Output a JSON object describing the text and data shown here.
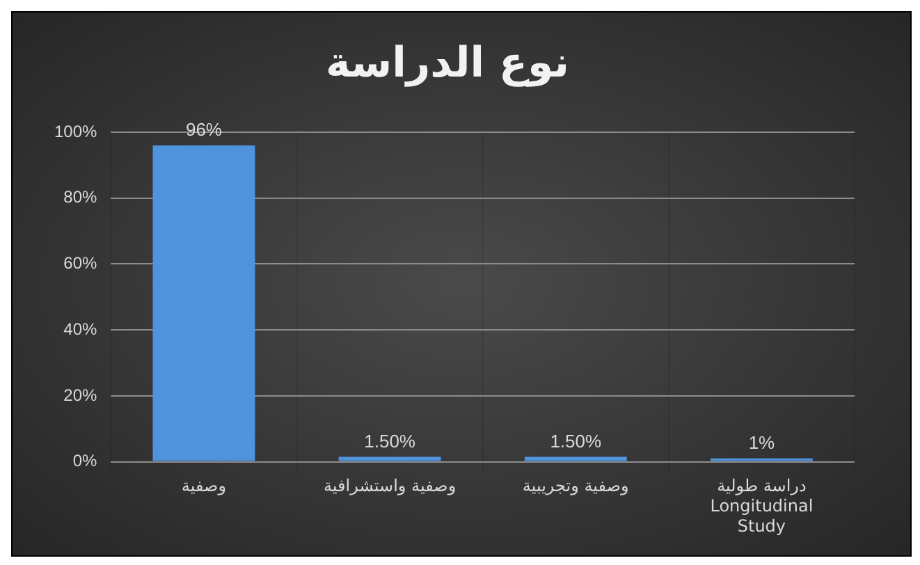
{
  "chart_data": {
    "type": "bar",
    "title": "نوع الدراسة",
    "categories": [
      "وصفية",
      "وصفية واستشرافية",
      "وصفية وتجريبية",
      "دراسة طولية\nLongitudinal\nStudy"
    ],
    "values": [
      96,
      1.5,
      1.5,
      1
    ],
    "value_labels": [
      "96%",
      "1.50%",
      "1.50%",
      "1%"
    ],
    "color": "#4f93dc",
    "ylim": [
      0,
      100
    ],
    "yticks": [
      {
        "value": 0,
        "label": "0%"
      },
      {
        "value": 20,
        "label": "20%"
      },
      {
        "value": 40,
        "label": "40%"
      },
      {
        "value": 60,
        "label": "60%"
      },
      {
        "value": 80,
        "label": "80%"
      },
      {
        "value": 100,
        "label": "100%"
      }
    ],
    "grid": true
  }
}
